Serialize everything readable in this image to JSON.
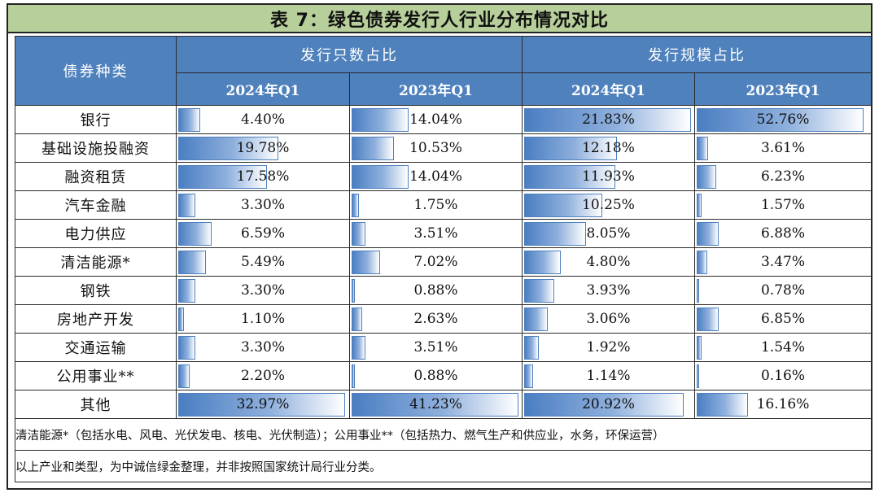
{
  "title": "表 7：绿色债券发行人行业分布情况对比",
  "header": {
    "category_label": "债券种类",
    "group1": "发行只数占比",
    "group2": "发行规模占比",
    "subcols": [
      "2024年Q1",
      "2023年Q1",
      "2024年Q1",
      "2023年Q1"
    ]
  },
  "rows": [
    {
      "name": "银行",
      "values": [
        "4.40%",
        "14.04%",
        "21.83%",
        "52.76%"
      ]
    },
    {
      "name": "基础设施投融资",
      "values": [
        "19.78%",
        "10.53%",
        "12.18%",
        "3.61%"
      ]
    },
    {
      "name": "融资租赁",
      "values": [
        "17.58%",
        "14.04%",
        "11.93%",
        "6.23%"
      ]
    },
    {
      "name": "汽车金融",
      "values": [
        "3.30%",
        "1.75%",
        "10.25%",
        "1.57%"
      ]
    },
    {
      "name": "电力供应",
      "values": [
        "6.59%",
        "3.51%",
        "8.05%",
        "6.88%"
      ]
    },
    {
      "name": "清洁能源*",
      "values": [
        "5.49%",
        "7.02%",
        "4.80%",
        "3.47%"
      ]
    },
    {
      "name": "钢铁",
      "values": [
        "3.30%",
        "0.88%",
        "3.93%",
        "0.78%"
      ]
    },
    {
      "name": "房地产开发",
      "values": [
        "1.10%",
        "2.63%",
        "3.06%",
        "6.85%"
      ]
    },
    {
      "name": "交通运输",
      "values": [
        "3.30%",
        "3.51%",
        "1.92%",
        "1.54%"
      ]
    },
    {
      "name": "公用事业**",
      "values": [
        "2.20%",
        "0.88%",
        "1.14%",
        "0.16%"
      ]
    },
    {
      "name": "其他",
      "values": [
        "32.97%",
        "41.23%",
        "20.92%",
        "16.16%"
      ]
    }
  ],
  "notes": [
    "清洁能源*（包括水电、风电、光伏发电、核电、光伏制造）；公用事业**（包括热力、燃气生产和供应业，水务，环保运营）",
    "以上产业和类型，为中诚信绿金整理，并非按照国家统计局行业分类。"
  ],
  "colors": {
    "title_bg": "#b7cf9a",
    "header_bg": "#4f81bd",
    "bar_fill": "#4a7ec2"
  }
}
